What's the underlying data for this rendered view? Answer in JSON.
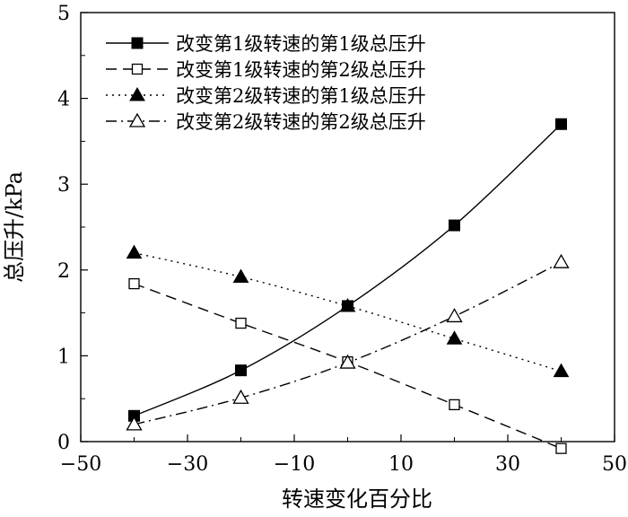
{
  "chart_data": {
    "type": "line",
    "title": "",
    "xlabel": "转速变化百分比",
    "ylabel": "总压升/kPa",
    "xlim": [
      -50,
      50
    ],
    "ylim": [
      0,
      5
    ],
    "x_ticks": [
      -50,
      -30,
      -10,
      10,
      30,
      50
    ],
    "x_tick_labels": [
      "−50",
      "−30",
      "−10",
      "10",
      "30",
      "50"
    ],
    "y_ticks": [
      0,
      1,
      2,
      3,
      4,
      5
    ],
    "y_tick_labels": [
      "0",
      "1",
      "2",
      "3",
      "4",
      "5"
    ],
    "grid": false,
    "legend_position": "top-left",
    "series": [
      {
        "name": "改变第1级转速的第1级总压升",
        "marker": "filled-square",
        "line_style": "solid",
        "x": [
          -40,
          -20,
          0,
          20,
          40
        ],
        "y": [
          0.3,
          0.83,
          1.58,
          2.52,
          3.7
        ]
      },
      {
        "name": "改变第1级转速的第2级总压升",
        "marker": "open-square",
        "line_style": "dashed",
        "x": [
          -40,
          -20,
          0,
          20,
          40
        ],
        "y": [
          1.84,
          1.38,
          0.93,
          0.43,
          -0.08
        ]
      },
      {
        "name": "改变第2级转速的第1级总压升",
        "marker": "filled-triangle",
        "line_style": "dotted",
        "x": [
          -40,
          -20,
          0,
          20,
          40
        ],
        "y": [
          2.2,
          1.92,
          1.58,
          1.2,
          0.82
        ]
      },
      {
        "name": "改变第2级转速的第2级总压升",
        "marker": "open-triangle",
        "line_style": "dash-dot",
        "x": [
          -40,
          -20,
          0,
          20,
          40
        ],
        "y": [
          0.2,
          0.51,
          0.92,
          1.46,
          2.09
        ]
      }
    ]
  }
}
